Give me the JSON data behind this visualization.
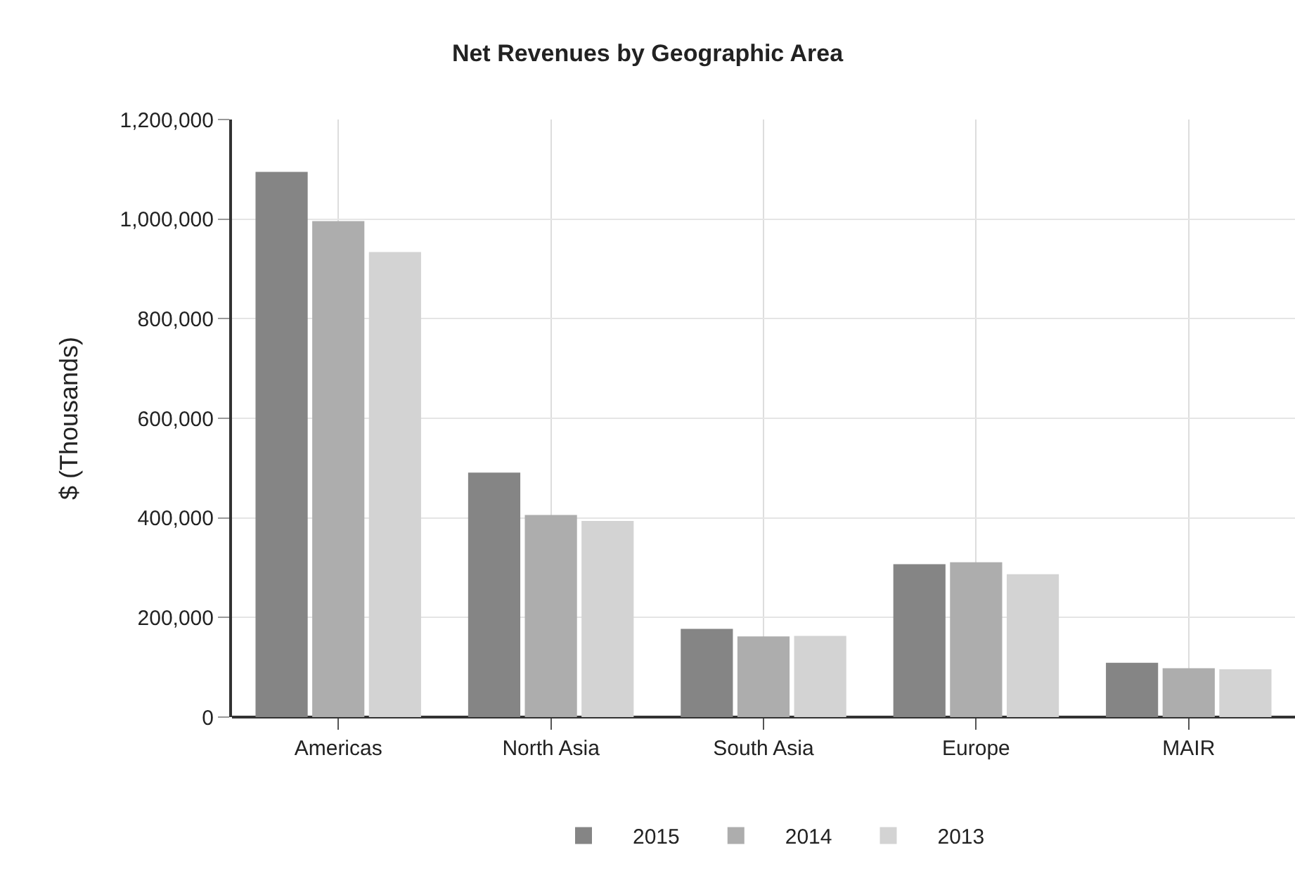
{
  "chart_data": {
    "type": "bar",
    "title": "Net Revenues by Geographic Area",
    "ylabel": "$ (Thousands)",
    "categories": [
      "Americas",
      "North Asia",
      "South Asia",
      "Europe",
      "MAIR"
    ],
    "series": [
      {
        "name": "2015",
        "color": "#858585",
        "values": [
          1095000,
          491000,
          177000,
          307000,
          109000
        ]
      },
      {
        "name": "2014",
        "color": "#adadad",
        "values": [
          996000,
          406000,
          162000,
          311000,
          98000
        ]
      },
      {
        "name": "2013",
        "color": "#d3d3d3",
        "values": [
          934000,
          394000,
          163000,
          287000,
          96000
        ]
      }
    ],
    "ylim": [
      0,
      1200000
    ],
    "yticks": [
      {
        "value": 0,
        "label": "0"
      },
      {
        "value": 200000,
        "label": "200,000"
      },
      {
        "value": 400000,
        "label": "400,000"
      },
      {
        "value": 600000,
        "label": "600,000"
      },
      {
        "value": 800000,
        "label": "800,000"
      },
      {
        "value": 1000000,
        "label": "1,000,000"
      },
      {
        "value": 1200000,
        "label": "1,200,000"
      }
    ],
    "grid": true,
    "legend": "bottom"
  }
}
